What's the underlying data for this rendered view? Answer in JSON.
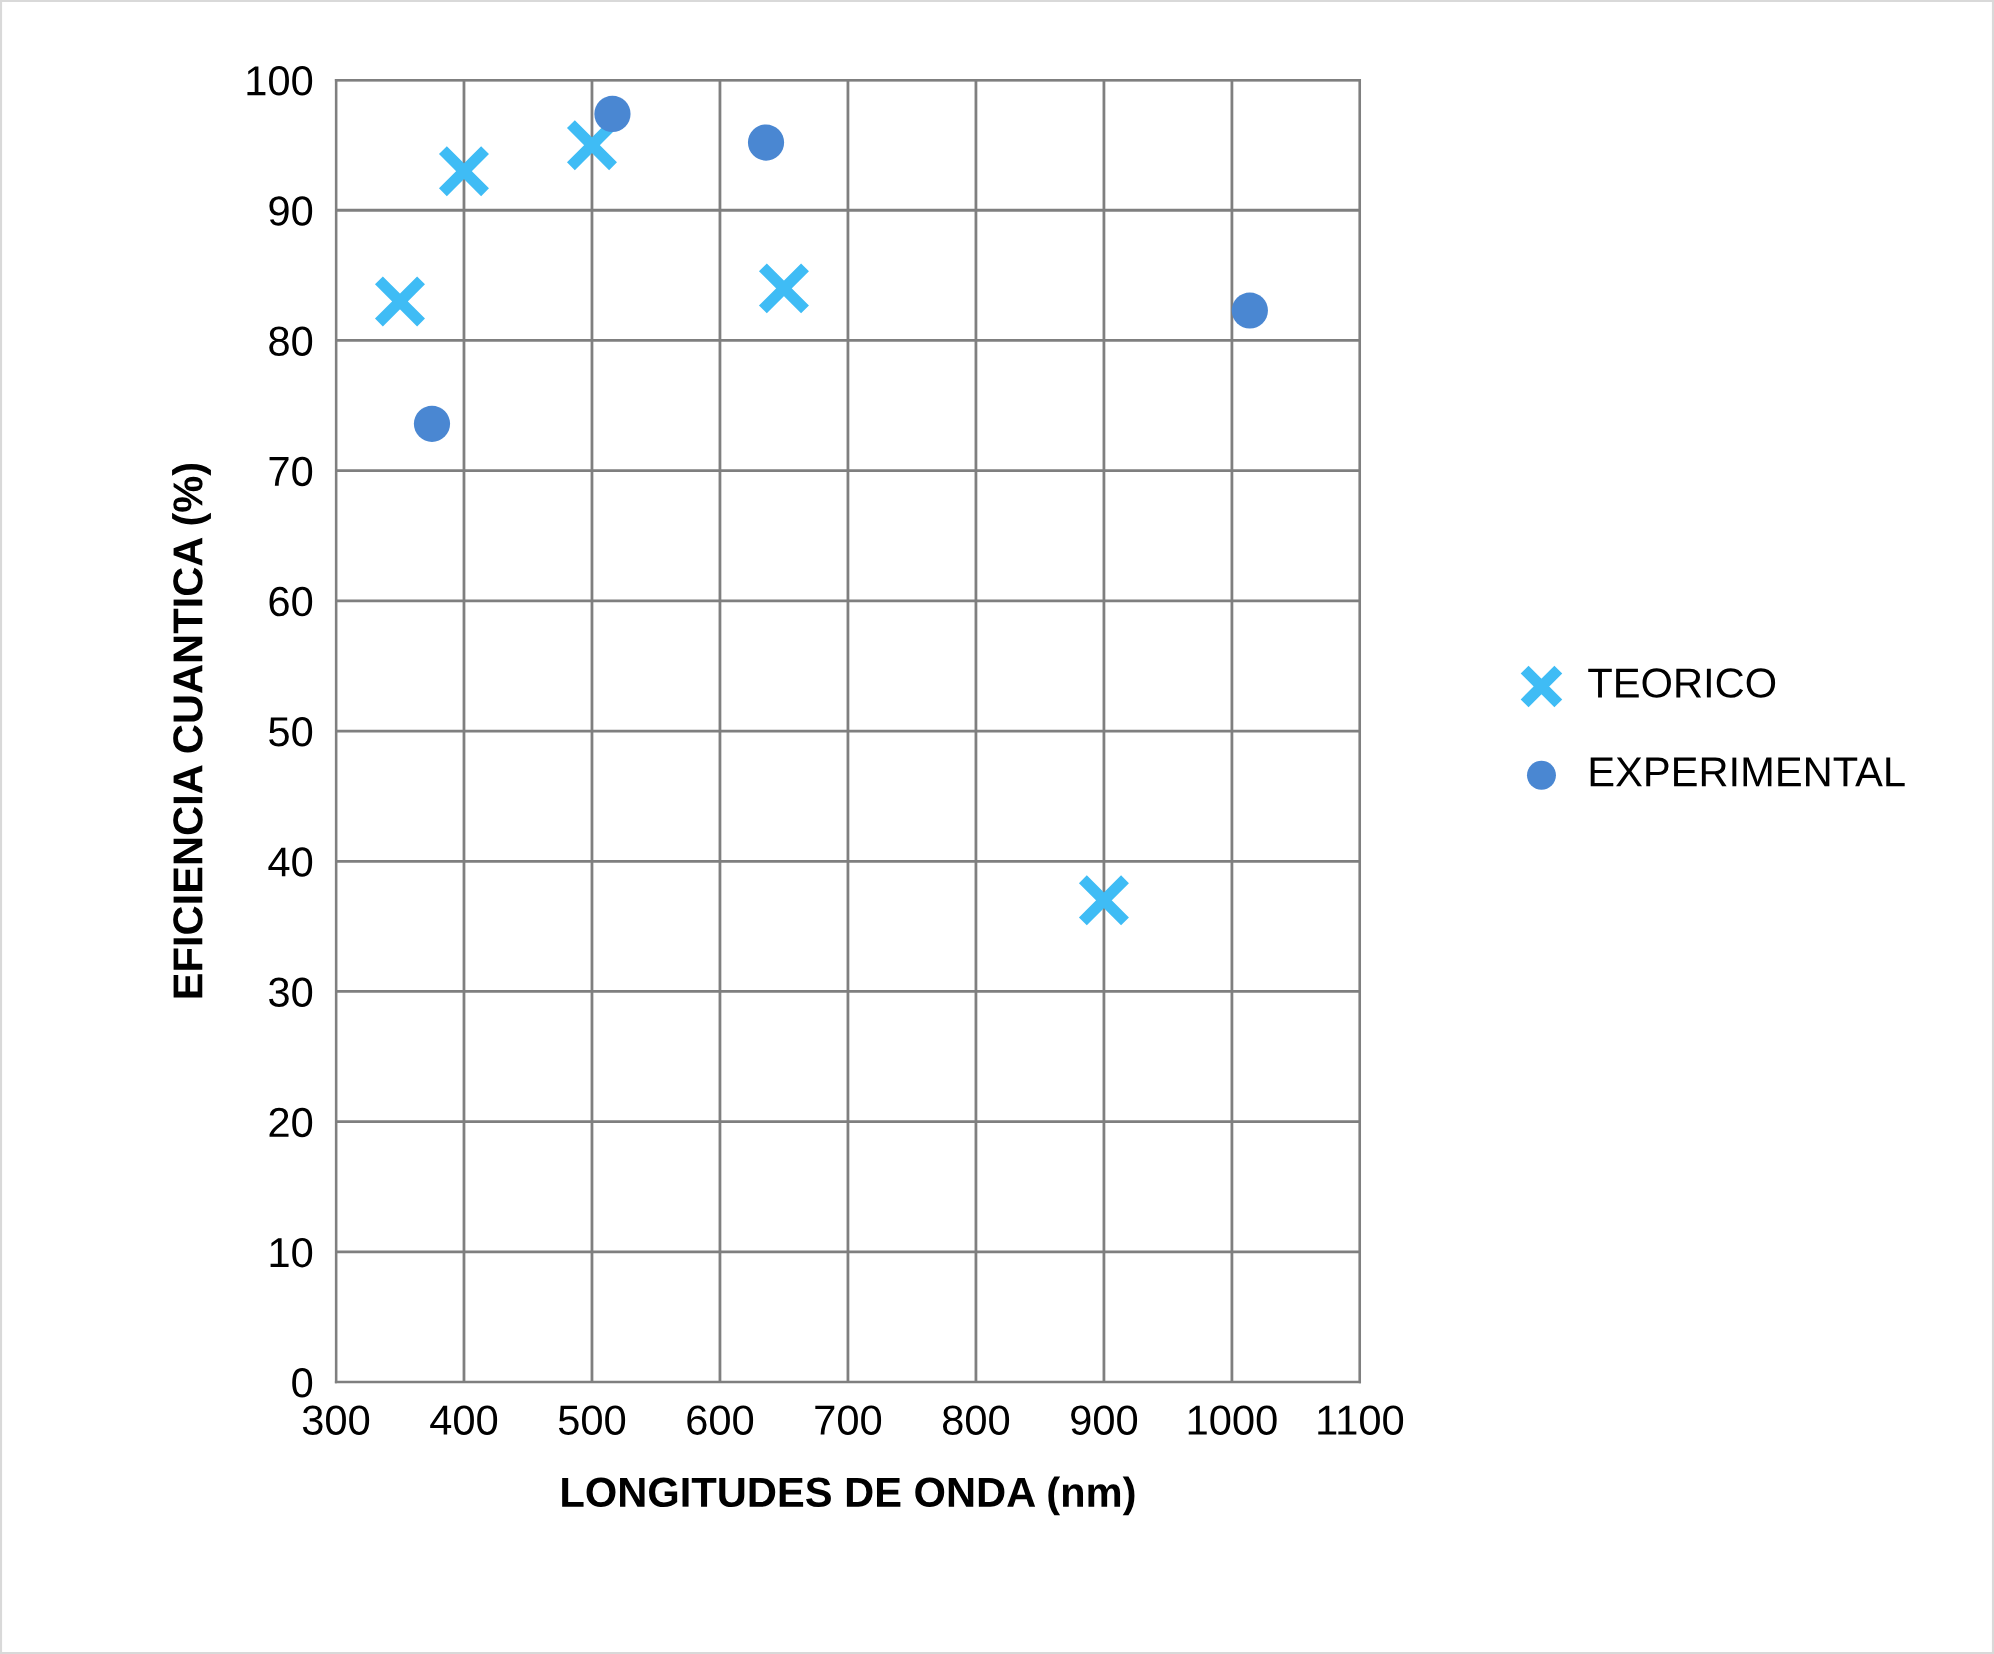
{
  "chart_data": {
    "type": "scatter",
    "xlabel": "LONGITUDES DE ONDA (nm)",
    "ylabel": "EFICIENCIA CUANTICA (%)",
    "series": [
      {
        "name": "TEORICO",
        "color": "#3fbcf5",
        "marker": "cross",
        "x": [
          350,
          400,
          500,
          650,
          900
        ],
        "values": [
          83,
          93,
          95,
          84,
          37
        ]
      },
      {
        "name": "EXPERIMENTAL",
        "color": "#4a87d2",
        "marker": "circle",
        "x": [
          375,
          516,
          636,
          1014
        ],
        "values": [
          73.6,
          97.4,
          95.2,
          82.3
        ]
      }
    ],
    "xlim": [
      300,
      1100
    ],
    "xticks": [
      300,
      400,
      500,
      600,
      700,
      800,
      900,
      1000,
      1100
    ],
    "ylim": [
      0,
      100
    ],
    "yticks": [
      0,
      10,
      20,
      30,
      40,
      50,
      60,
      70,
      80,
      90,
      100
    ],
    "grid": true,
    "legend": "right"
  }
}
